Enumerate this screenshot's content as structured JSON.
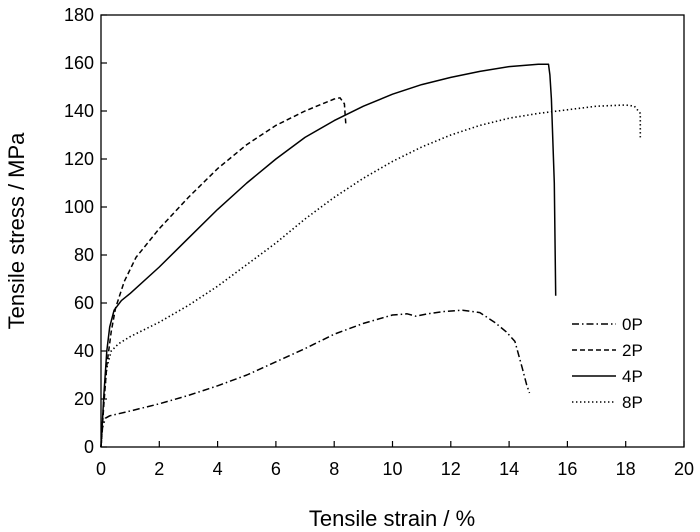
{
  "chart_data": {
    "type": "line",
    "title": "",
    "xlabel": "Tensile strain / %",
    "ylabel": "Tensile stress / MPa",
    "xlim": [
      0,
      20
    ],
    "ylim": [
      0,
      180
    ],
    "xticks": [
      "0",
      "2",
      "4",
      "6",
      "8",
      "10",
      "12",
      "14",
      "16",
      "18",
      "20"
    ],
    "yticks": [
      "0",
      "20",
      "40",
      "60",
      "80",
      "100",
      "120",
      "140",
      "160",
      "180"
    ],
    "grid": false,
    "legend_position": "bottom-right",
    "series": [
      {
        "name": "0P",
        "dash": "dashdot",
        "color": "#000000",
        "points": [
          [
            0,
            0
          ],
          [
            0.05,
            8
          ],
          [
            0.15,
            12
          ],
          [
            0.3,
            13
          ],
          [
            1,
            15
          ],
          [
            2,
            18
          ],
          [
            3,
            21.5
          ],
          [
            4,
            25.5
          ],
          [
            5,
            30
          ],
          [
            6,
            35.5
          ],
          [
            7,
            41
          ],
          [
            8,
            47
          ],
          [
            9,
            51.5
          ],
          [
            10,
            55
          ],
          [
            10.5,
            55.5
          ],
          [
            10.8,
            54.5
          ],
          [
            11.2,
            55.5
          ],
          [
            11.8,
            56.5
          ],
          [
            12.4,
            57
          ],
          [
            13,
            56
          ],
          [
            13.5,
            52
          ],
          [
            13.9,
            48
          ],
          [
            14.2,
            44
          ],
          [
            14.45,
            33
          ],
          [
            14.6,
            26
          ],
          [
            14.7,
            22.5
          ]
        ]
      },
      {
        "name": "2P",
        "dash": "dashed",
        "color": "#000000",
        "points": [
          [
            0,
            0
          ],
          [
            0.1,
            18
          ],
          [
            0.2,
            34
          ],
          [
            0.35,
            48
          ],
          [
            0.5,
            58
          ],
          [
            0.8,
            69
          ],
          [
            1.2,
            79
          ],
          [
            2,
            91
          ],
          [
            3,
            104
          ],
          [
            4,
            116
          ],
          [
            5,
            126
          ],
          [
            6,
            134
          ],
          [
            7,
            140
          ],
          [
            8,
            145
          ],
          [
            8.2,
            145.5
          ],
          [
            8.35,
            143
          ],
          [
            8.4,
            134
          ]
        ]
      },
      {
        "name": "4P",
        "dash": "solid",
        "color": "#000000",
        "points": [
          [
            0,
            0
          ],
          [
            0.1,
            22
          ],
          [
            0.2,
            40
          ],
          [
            0.3,
            50
          ],
          [
            0.45,
            57
          ],
          [
            0.7,
            61
          ],
          [
            1,
            64
          ],
          [
            2,
            75
          ],
          [
            3,
            87
          ],
          [
            4,
            99
          ],
          [
            5,
            110
          ],
          [
            6,
            120
          ],
          [
            7,
            129
          ],
          [
            8,
            136
          ],
          [
            9,
            142
          ],
          [
            10,
            147
          ],
          [
            11,
            151
          ],
          [
            12,
            154
          ],
          [
            13,
            156.5
          ],
          [
            14,
            158.5
          ],
          [
            15,
            159.5
          ],
          [
            15.35,
            159.5
          ],
          [
            15.4,
            155
          ],
          [
            15.45,
            145
          ],
          [
            15.55,
            110
          ],
          [
            15.6,
            63
          ]
        ]
      },
      {
        "name": "8P",
        "dash": "dotted",
        "color": "#000000",
        "points": [
          [
            0,
            0
          ],
          [
            0.1,
            20
          ],
          [
            0.2,
            33
          ],
          [
            0.35,
            40
          ],
          [
            0.6,
            43
          ],
          [
            1,
            46
          ],
          [
            2,
            52
          ],
          [
            3,
            59
          ],
          [
            4,
            67
          ],
          [
            5,
            76
          ],
          [
            6,
            85
          ],
          [
            7,
            95
          ],
          [
            8,
            104
          ],
          [
            9,
            112
          ],
          [
            10,
            119
          ],
          [
            11,
            125
          ],
          [
            12,
            130
          ],
          [
            13,
            134
          ],
          [
            14,
            137
          ],
          [
            15,
            139
          ],
          [
            16,
            140.5
          ],
          [
            17,
            142
          ],
          [
            18,
            142.5
          ],
          [
            18.3,
            142
          ],
          [
            18.5,
            139
          ],
          [
            18.5,
            129
          ]
        ]
      }
    ]
  }
}
